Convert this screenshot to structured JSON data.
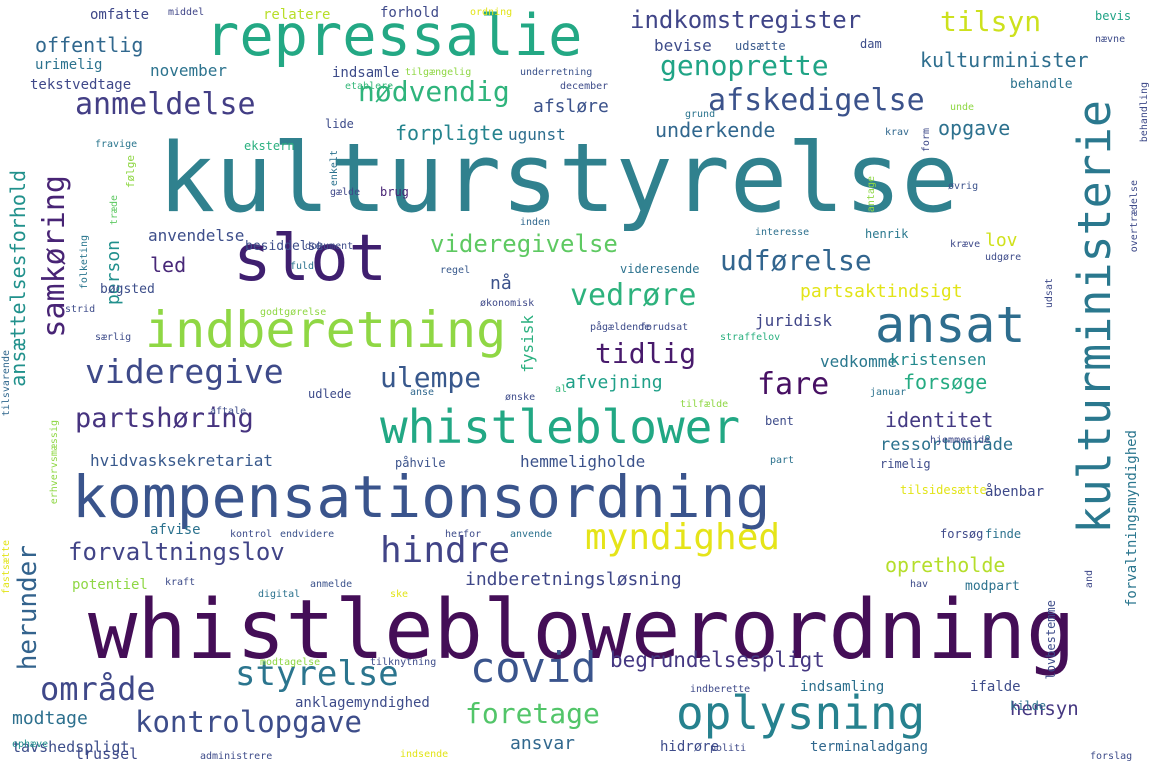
{
  "word_cloud": {
    "words": [
      {
        "text": "kulturstyrelse",
        "color": "#30818e"
      },
      {
        "text": "whistleblowerordning",
        "color": "#440e57"
      },
      {
        "text": "kompensationsordning",
        "color": "#3a548c"
      },
      {
        "text": "repressalie",
        "color": "#23a884"
      },
      {
        "text": "slot",
        "color": "#3f1f6f"
      },
      {
        "text": "indberetning",
        "color": "#8fd744"
      },
      {
        "text": "ansat",
        "color": "#2e6d8e"
      },
      {
        "text": "kulturministerie",
        "color": "#2a788e"
      },
      {
        "text": "whistleblower",
        "color": "#22a884"
      },
      {
        "text": "oplysning",
        "color": "#26818e"
      },
      {
        "text": "covid",
        "color": "#3a548c"
      },
      {
        "text": "myndighed",
        "color": "#e5e419"
      },
      {
        "text": "hindre",
        "color": "#414487"
      },
      {
        "text": "styrelse",
        "color": "#2b758e"
      },
      {
        "text": "område",
        "color": "#3f4889"
      },
      {
        "text": "videregive",
        "color": "#3e4a89"
      },
      {
        "text": "samkøring",
        "color": "#482475"
      },
      {
        "text": "anmeldelse",
        "color": "#433e85"
      },
      {
        "text": "afskedigelse",
        "color": "#3b528b"
      },
      {
        "text": "genoprette",
        "color": "#20a486"
      },
      {
        "text": "nødvendig",
        "color": "#2fb47c"
      },
      {
        "text": "tilsyn",
        "color": "#cde11d"
      },
      {
        "text": "indkomstregister",
        "color": "#404588"
      },
      {
        "text": "kulturminister",
        "color": "#2e6e8e"
      },
      {
        "text": "vedrøre",
        "color": "#2db27d"
      },
      {
        "text": "udførelse",
        "color": "#32658e"
      },
      {
        "text": "tidlig",
        "color": "#481a6c"
      },
      {
        "text": "fare",
        "color": "#471063"
      },
      {
        "text": "ulempe",
        "color": "#38588c"
      },
      {
        "text": "partshøring",
        "color": "#46337f"
      },
      {
        "text": "videregivelse",
        "color": "#5ec962"
      },
      {
        "text": "foretage",
        "color": "#52c569"
      },
      {
        "text": "kontrolopgave",
        "color": "#3d4d8a"
      },
      {
        "text": "forvaltningslov",
        "color": "#414487"
      },
      {
        "text": "herunder",
        "color": "#33638d"
      },
      {
        "text": "ansættelsesforhold",
        "color": "#21918c"
      },
      {
        "text": "person",
        "color": "#21908d"
      },
      {
        "text": "led",
        "color": "#482878"
      },
      {
        "text": "nå",
        "color": "#3b528b"
      },
      {
        "text": "identitet",
        "color": "#443a83"
      },
      {
        "text": "ressortområde",
        "color": "#2c728e"
      },
      {
        "text": "forsøge",
        "color": "#25ab82"
      },
      {
        "text": "begrundelsespligt",
        "color": "#453882"
      },
      {
        "text": "hensyn",
        "color": "#453781"
      },
      {
        "text": "opretholde",
        "color": "#b5de2b"
      },
      {
        "text": "indberetningsløsning",
        "color": "#3f4788"
      },
      {
        "text": "forvaltningsmyndighed",
        "color": "#2a768e"
      },
      {
        "text": "partsaktindsigt",
        "color": "#e2e418"
      },
      {
        "text": "lov",
        "color": "#d0e11c"
      },
      {
        "text": "underkende",
        "color": "#31678e"
      },
      {
        "text": "forpligte",
        "color": "#25848e"
      },
      {
        "text": "opgave",
        "color": "#2d718e"
      },
      {
        "text": "afsløre",
        "color": "#3b528b"
      },
      {
        "text": "offentlig",
        "color": "#31688e"
      },
      {
        "text": "november",
        "color": "#2c738e"
      },
      {
        "text": "hvidvasksekretariat",
        "color": "#38598c"
      },
      {
        "text": "anvendelse",
        "color": "#3d4e8a"
      },
      {
        "text": "ansvar",
        "color": "#31688e"
      },
      {
        "text": "modtage",
        "color": "#2d708e"
      },
      {
        "text": "tavshedspligt",
        "color": "#3d4e8a"
      },
      {
        "text": "trussel",
        "color": "#3e4a89"
      },
      {
        "text": "hemmeligholde",
        "color": "#3b528b"
      },
      {
        "text": "afvejning",
        "color": "#1fa088"
      },
      {
        "text": "juridisk",
        "color": "#404688"
      },
      {
        "text": "vedkomme",
        "color": "#2a788e"
      },
      {
        "text": "kristensen",
        "color": "#23898e"
      },
      {
        "text": "fysisk",
        "color": "#2ab07f"
      },
      {
        "text": "ugunst",
        "color": "#2e6e8e"
      },
      {
        "text": "bevise",
        "color": "#3e4c8a"
      },
      {
        "text": "indsamling",
        "color": "#2d708e"
      },
      {
        "text": "indsamle",
        "color": "#3e4c8a"
      },
      {
        "text": "tekstvedtage",
        "color": "#3f4889"
      },
      {
        "text": "urimelig",
        "color": "#2c728e"
      },
      {
        "text": "omfatte",
        "color": "#3f4889"
      },
      {
        "text": "relatere",
        "color": "#b8de29"
      },
      {
        "text": "forhold",
        "color": "#3e4989"
      },
      {
        "text": "ordning",
        "color": "#e2e418"
      },
      {
        "text": "middel",
        "color": "#404688"
      },
      {
        "text": "bevis",
        "color": "#20a386"
      },
      {
        "text": "nævne",
        "color": "#3e4c8a"
      },
      {
        "text": "udsætte",
        "color": "#38598c"
      },
      {
        "text": "dam",
        "color": "#3d4d8a"
      },
      {
        "text": "behandle",
        "color": "#2c738e"
      },
      {
        "text": "behandling",
        "color": "#3e4a89"
      },
      {
        "text": "tilgængelig",
        "color": "#8fd744"
      },
      {
        "text": "underretning",
        "color": "#3b528b"
      },
      {
        "text": "etablere",
        "color": "#35b779"
      },
      {
        "text": "december",
        "color": "#3e4c8a"
      },
      {
        "text": "grund",
        "color": "#2b748e"
      },
      {
        "text": "unde",
        "color": "#8fd744"
      },
      {
        "text": "lide",
        "color": "#3e4c8a"
      },
      {
        "text": "ekstern",
        "color": "#2ab07f"
      },
      {
        "text": "enkelt",
        "color": "#2c728e"
      },
      {
        "text": "krav",
        "color": "#31688e"
      },
      {
        "text": "form",
        "color": "#3e4989"
      },
      {
        "text": "fravige",
        "color": "#2a768e"
      },
      {
        "text": "følge",
        "color": "#8fd744"
      },
      {
        "text": "træde",
        "color": "#5ec962"
      },
      {
        "text": "gælde",
        "color": "#3f4889"
      },
      {
        "text": "brug",
        "color": "#482475"
      },
      {
        "text": "øvrig",
        "color": "#3b528b"
      },
      {
        "text": "antage",
        "color": "#8fd744"
      },
      {
        "text": "overtrædelse",
        "color": "#3e4a89"
      },
      {
        "text": "inden",
        "color": "#31688e"
      },
      {
        "text": "interesse",
        "color": "#2d708e"
      },
      {
        "text": "henrik",
        "color": "#2a788e"
      },
      {
        "text": "kræve",
        "color": "#3e4989"
      },
      {
        "text": "besiddelse",
        "color": "#3d4e8a"
      },
      {
        "text": "dokument",
        "color": "#3e4c8a"
      },
      {
        "text": "bøgsted",
        "color": "#3d4e8a"
      },
      {
        "text": "fuld",
        "color": "#2c728e"
      },
      {
        "text": "regel",
        "color": "#38598c"
      },
      {
        "text": "videresende",
        "color": "#2c728e"
      },
      {
        "text": "udgøre",
        "color": "#3e4c8a"
      },
      {
        "text": "udsat",
        "color": "#3e4a89"
      },
      {
        "text": "folketing",
        "color": "#2a768e"
      },
      {
        "text": "økonomisk",
        "color": "#3e4989"
      },
      {
        "text": "strid",
        "color": "#3e4c8a"
      },
      {
        "text": "godtgørelse",
        "color": "#8fd744"
      },
      {
        "text": "pågældende",
        "color": "#3e4c8a"
      },
      {
        "text": "forudsat",
        "color": "#3e4c8a"
      },
      {
        "text": "straffelov",
        "color": "#2ab07f"
      },
      {
        "text": "særlig",
        "color": "#3e4c8a"
      },
      {
        "text": "tilsvarende",
        "color": "#31688e"
      },
      {
        "text": "udlede",
        "color": "#3e4c8a"
      },
      {
        "text": "al",
        "color": "#35b779"
      },
      {
        "text": "anse",
        "color": "#31688e"
      },
      {
        "text": "ønske",
        "color": "#3e4c8a"
      },
      {
        "text": "januar",
        "color": "#2c728e"
      },
      {
        "text": "aftale",
        "color": "#3e4c8a"
      },
      {
        "text": "tilfælde",
        "color": "#8fd744"
      },
      {
        "text": "bent",
        "color": "#3e4c8a"
      },
      {
        "text": "hjemmeside",
        "color": "#3e4989"
      },
      {
        "text": "rimelig",
        "color": "#3e4c8a"
      },
      {
        "text": "tilsidesætte",
        "color": "#e2e418"
      },
      {
        "text": "part",
        "color": "#2c728e"
      },
      {
        "text": "påhvile",
        "color": "#3b528b"
      },
      {
        "text": "erhvervsmæssig",
        "color": "#8fd744"
      },
      {
        "text": "åbenbar",
        "color": "#3e4989"
      },
      {
        "text": "afvise",
        "color": "#2c728e"
      },
      {
        "text": "kontrol",
        "color": "#3e4c8a"
      },
      {
        "text": "endvidere",
        "color": "#3b528b"
      },
      {
        "text": "herfor",
        "color": "#3e4c8a"
      },
      {
        "text": "anvende",
        "color": "#2c728e"
      },
      {
        "text": "forsøg",
        "color": "#3e4989"
      },
      {
        "text": "finde",
        "color": "#2c728e"
      },
      {
        "text": "fastsætte",
        "color": "#e2e418"
      },
      {
        "text": "potentiel",
        "color": "#8fd744"
      },
      {
        "text": "kraft",
        "color": "#3e4c8a"
      },
      {
        "text": "anmelde",
        "color": "#3b528b"
      },
      {
        "text": "digital",
        "color": "#2c728e"
      },
      {
        "text": "ske",
        "color": "#e2e418"
      },
      {
        "text": "hav",
        "color": "#3e4c8a"
      },
      {
        "text": "modpart",
        "color": "#2c728e"
      },
      {
        "text": "and",
        "color": "#3e4989"
      },
      {
        "text": "lovbestemme",
        "color": "#3e4c8a"
      },
      {
        "text": "modtagelse",
        "color": "#8fd744"
      },
      {
        "text": "tilknytning",
        "color": "#3e4c8a"
      },
      {
        "text": "indberette",
        "color": "#3e4989"
      },
      {
        "text": "ifalde",
        "color": "#3e4c8a"
      },
      {
        "text": "anklagemyndighed",
        "color": "#3e4c8a"
      },
      {
        "text": "kilde",
        "color": "#2c728e"
      },
      {
        "text": "ophæve",
        "color": "#21908d"
      },
      {
        "text": "administrere",
        "color": "#3e4c8a"
      },
      {
        "text": "indsende",
        "color": "#e2e418"
      },
      {
        "text": "hidrøre",
        "color": "#3e4c8a"
      },
      {
        "text": "politi",
        "color": "#3e4989"
      },
      {
        "text": "terminaladgang",
        "color": "#31688e"
      },
      {
        "text": "forslag",
        "color": "#3e4c8a"
      }
    ]
  }
}
